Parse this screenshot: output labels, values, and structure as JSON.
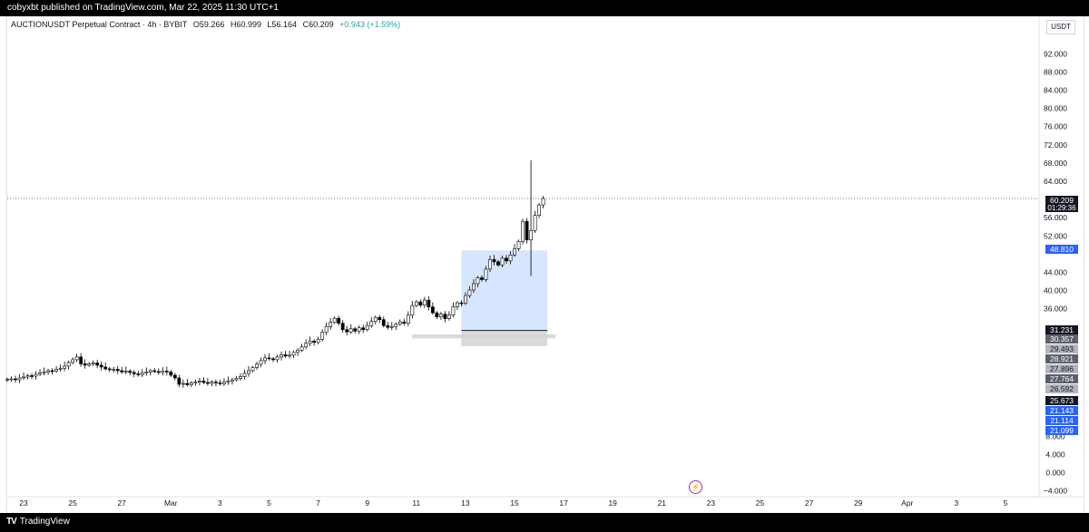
{
  "header": {
    "publish_text": "cobyxbt published on TradingView.com, Mar 22, 2025 11:30 UTC+1"
  },
  "legend": {
    "symbol": "AUCTIONUSDT Perpetual Contract · 4h · BYBIT",
    "open": "O59.266",
    "high": "H60.999",
    "low": "L56.164",
    "close": "C60.209",
    "change": "+0.943 (+1.59%)"
  },
  "yaxis": {
    "unit": "USDT"
  },
  "footer": {
    "logo_text": "TradingView"
  },
  "colors": {
    "up": "#ffffff",
    "down": "#000000",
    "box_blue": "#cfe2ff",
    "box_gray": "#d4d4d4",
    "label_blue": "#2962ff"
  },
  "chart_data": {
    "type": "candlestick",
    "ylim": [
      -4,
      96
    ],
    "y_ticks": [
      -4,
      0,
      4,
      8,
      12,
      16,
      20,
      24,
      28,
      32,
      36,
      40,
      44,
      48,
      52,
      56,
      60,
      64,
      68,
      72,
      76,
      80,
      84,
      88,
      92
    ],
    "y_tick_labels": [
      "−4.000",
      "0.000",
      "4.000",
      "8.000",
      "",
      "",
      "",
      "",
      "",
      "",
      "36.000",
      "40.000",
      "44.000",
      "",
      "52.000",
      "56.000",
      "",
      "64.000",
      "68.000",
      "72.000",
      "76.000",
      "80.000",
      "84.000",
      "88.000",
      "92.000"
    ],
    "x_tick_labels": [
      "23",
      "25",
      "27",
      "Mar",
      "3",
      "5",
      "7",
      "9",
      "11",
      "13",
      "15",
      "17",
      "19",
      "21",
      "23",
      "25",
      "27",
      "29",
      "Apr",
      "3",
      "5"
    ],
    "x_tick_days": [
      0,
      2,
      4,
      6,
      8,
      10,
      12,
      14,
      16,
      18,
      20,
      22,
      24,
      26,
      28,
      30,
      32,
      34,
      36,
      38,
      40
    ],
    "bar_interval_hours": 4,
    "closes": [
      20.5,
      20.6,
      20.4,
      20.8,
      21.0,
      21.3,
      21.2,
      21.6,
      21.9,
      22.1,
      22.4,
      22.3,
      22.7,
      22.9,
      23.4,
      24.2,
      24.8,
      25.4,
      23.9,
      23.6,
      23.9,
      24.1,
      23.6,
      23.2,
      22.8,
      22.6,
      22.7,
      22.4,
      22.1,
      22.3,
      22.0,
      21.7,
      21.5,
      21.9,
      22.1,
      22.4,
      22.2,
      22.0,
      22.3,
      22.1,
      21.4,
      20.8,
      19.4,
      19.6,
      19.3,
      19.7,
      19.9,
      20.1,
      19.8,
      19.6,
      19.9,
      19.7,
      19.5,
      19.9,
      20.1,
      20.4,
      20.7,
      21.1,
      21.8,
      22.4,
      23.1,
      23.8,
      24.6,
      25.2,
      25.0,
      24.8,
      25.4,
      25.9,
      25.6,
      25.8,
      26.4,
      26.9,
      27.6,
      28.4,
      28.9,
      28.6,
      29.3,
      30.8,
      32.1,
      33.0,
      33.9,
      32.8,
      31.4,
      30.9,
      31.6,
      31.1,
      31.8,
      31.4,
      32.3,
      33.2,
      34.1,
      33.6,
      32.3,
      31.9,
      32.1,
      32.6,
      33.1,
      32.8,
      34.6,
      36.7,
      37.5,
      36.8,
      37.9,
      36.4,
      35.1,
      34.2,
      34.8,
      33.8,
      34.6,
      36.4,
      37.3,
      37.2,
      38.9,
      40.1,
      41.5,
      42.8,
      42.4,
      44.7,
      46.8,
      46.3,
      45.6,
      47.1,
      46.5,
      47.8,
      49.2,
      50.8,
      55.2,
      51.1,
      53.2,
      56.5,
      58.8,
      60.2
    ],
    "series_note": "",
    "zones": [
      {
        "type": "box",
        "from_bar": 111,
        "to_bar": 132,
        "top": 48.81,
        "bottom": 31.23,
        "color": "blue"
      },
      {
        "type": "box",
        "from_bar": 111,
        "to_bar": 132,
        "top": 31.23,
        "bottom": 27.764,
        "color": "gray"
      },
      {
        "type": "box",
        "from_bar": 99,
        "to_bar": 134,
        "top": 30.357,
        "bottom": 29.493,
        "color": "gray"
      }
    ],
    "current_price_line": 60.209,
    "price_labels": [
      {
        "value": 60.209,
        "text": "60.209",
        "sub": "01:29:36",
        "style": "black"
      },
      {
        "value": 48.81,
        "text": "48.810",
        "style": "blue"
      },
      {
        "value": 31.231,
        "text": "31.231",
        "style": "black"
      },
      {
        "value": 30.357,
        "text": "30.357",
        "style": "dark"
      },
      {
        "value": 29.493,
        "text": "29.493",
        "style": "light"
      },
      {
        "value": 28.921,
        "text": "28.921",
        "style": "dark"
      },
      {
        "value": 27.896,
        "text": "27.896",
        "style": "light"
      },
      {
        "value": 27.764,
        "text": "27.764",
        "style": "dark"
      },
      {
        "value": 26.592,
        "text": "26.592",
        "style": "light"
      },
      {
        "value": 25.673,
        "text": "25.673",
        "style": "black"
      },
      {
        "value": 21.143,
        "text": "21.143",
        "style": "blue"
      },
      {
        "value": 21.114,
        "text": "21.114",
        "style": "blue"
      },
      {
        "value": 21.099,
        "text": "21.099",
        "style": "blue"
      }
    ]
  }
}
